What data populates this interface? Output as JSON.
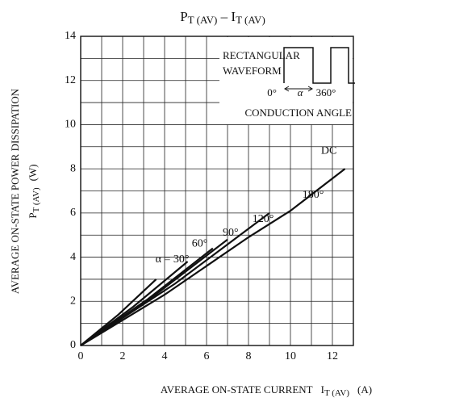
{
  "chart_data": {
    "type": "line",
    "title": [
      "P",
      "T (AV)",
      " – ",
      "I",
      "T (AV)"
    ],
    "y_label": [
      "AVERAGE ON-STATE POWER DISSIPATION",
      "P",
      "T (AV)",
      "(W)"
    ],
    "x_label": [
      "AVERAGE ON-STATE CURRENT",
      "I",
      "T (AV)",
      "(A)"
    ],
    "annotations": [
      "RECTANGULAR",
      "WAVEFORM",
      "0°",
      "α",
      "360°",
      "CONDUCTION ANGLE"
    ],
    "xlim": [
      0,
      13
    ],
    "ylim": [
      0,
      14
    ],
    "xticks": [
      0,
      2,
      4,
      6,
      8,
      10,
      12
    ],
    "yticks": [
      0,
      2,
      4,
      6,
      8,
      10,
      12,
      14
    ],
    "x_minor_grid": [
      1,
      3,
      5,
      7,
      9,
      11,
      13
    ],
    "y_minor_grid": [
      1,
      3,
      5,
      7,
      9,
      11,
      13
    ],
    "grid": true,
    "series": [
      {
        "name": "α = 30°",
        "color": "#111111",
        "x": [
          0,
          1.8,
          3.6
        ],
        "values": [
          0,
          1.4,
          3
        ]
      },
      {
        "name": "60°",
        "color": "#111111",
        "x": [
          0,
          2.5,
          5.1
        ],
        "values": [
          0,
          1.75,
          3.8
        ]
      },
      {
        "name": "90°",
        "color": "#111111",
        "x": [
          0,
          3.2,
          6.3
        ],
        "values": [
          0,
          2.1,
          4.4
        ]
      },
      {
        "name": "120°",
        "color": "#111111",
        "x": [
          0,
          3.5,
          7.0
        ],
        "values": [
          0,
          2.25,
          4.8
        ]
      },
      {
        "name": "180°",
        "color": "#111111",
        "x": [
          0,
          4.5,
          9.0
        ],
        "values": [
          0,
          2.8,
          6.0
        ]
      },
      {
        "name": "DC",
        "color": "#111111",
        "x": [
          0,
          4,
          8,
          10,
          12.6
        ],
        "values": [
          0,
          2.3,
          4.9,
          6.1,
          8
        ]
      }
    ]
  }
}
